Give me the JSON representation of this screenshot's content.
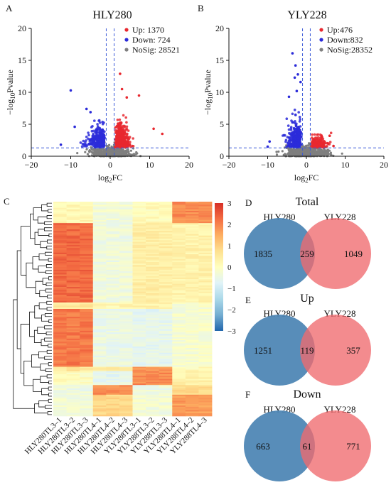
{
  "panel_labels": {
    "a": "A",
    "b": "B",
    "c": "C",
    "d": "D",
    "e": "E",
    "f": "F"
  },
  "chart_data": [
    {
      "type": "scatter",
      "panel": "A",
      "title": "HLY280",
      "xlabel": "log2FC",
      "ylabel": "-log10Pvalue",
      "xlim": [
        -20,
        20
      ],
      "ylim": [
        0,
        20
      ],
      "xticks": [
        "-20",
        "-10",
        "0",
        "10",
        "20"
      ],
      "yticks": [
        "0",
        "5",
        "10",
        "15",
        "20"
      ],
      "thresholds": {
        "x": [
          -1,
          1
        ],
        "y": 1.3
      },
      "legend_position": "top-right",
      "series": [
        {
          "name": "Up: 1370",
          "color": "#e8282f",
          "count": 1370
        },
        {
          "name": "Down: 724",
          "color": "#2b2bd9",
          "count": 724
        },
        {
          "name": "NoSig: 28521",
          "color": "#7f7f7f",
          "count": 28521
        }
      ]
    },
    {
      "type": "scatter",
      "panel": "B",
      "title": "YLY228",
      "xlabel": "log2FC",
      "ylabel": "-log10Pvalue",
      "xlim": [
        -20,
        20
      ],
      "ylim": [
        0,
        20
      ],
      "xticks": [
        "-20",
        "-10",
        "0",
        "10",
        "20"
      ],
      "yticks": [
        "0",
        "5",
        "10",
        "15",
        "20"
      ],
      "thresholds": {
        "x": [
          -1,
          1
        ],
        "y": 1.3
      },
      "legend_position": "top-right",
      "series": [
        {
          "name": "Up:476",
          "color": "#e8282f",
          "count": 476
        },
        {
          "name": "Down:832",
          "color": "#2b2bd9",
          "count": 832
        },
        {
          "name": "NoSig:28352",
          "color": "#7f7f7f",
          "count": 28352
        }
      ]
    },
    {
      "type": "heatmap",
      "panel": "C",
      "columns": [
        "HLY280TL3-1",
        "HLY280TL3-2",
        "HLY280TL3-3",
        "HLY280TL4-1",
        "HLY280TL4-2",
        "HLY280TL4-3",
        "YLY288TL3-1",
        "YLY288TL3-2",
        "YLY288TL3-3",
        "YLY288TL4-1",
        "YLY288TL4-2",
        "YLY288TL4-3"
      ],
      "colorbar": {
        "min": -3,
        "max": 3,
        "ticks": [
          "3",
          "2",
          "1",
          "0",
          "−1",
          "−2",
          "−3"
        ],
        "colors": [
          "#2166ac",
          "#74add1",
          "#abd9e9",
          "#e0f3f8",
          "#ffffbf",
          "#fee090",
          "#fdae61",
          "#f46d43",
          "#d73027"
        ]
      },
      "blocks": [
        {
          "rows": [
            0,
            0.1
          ],
          "values": [
            0.2,
            0.2,
            0.2,
            -0.3,
            -0.3,
            -0.3,
            0.1,
            0.1,
            0.1,
            1.9,
            1.9,
            1.9
          ]
        },
        {
          "rows": [
            0.1,
            0.47
          ],
          "values": [
            2.3,
            2.3,
            2.3,
            -0.4,
            -0.4,
            -0.4,
            0.4,
            0.4,
            0.4,
            0.3,
            0.3,
            0.3
          ]
        },
        {
          "rows": [
            0.47,
            0.5
          ],
          "values": [
            0.5,
            0.5,
            0.6,
            0.2,
            0.2,
            0.2,
            0.3,
            0.3,
            0.3,
            -0.2,
            -0.2,
            -0.2
          ]
        },
        {
          "rows": [
            0.5,
            0.77
          ],
          "values": [
            2.1,
            2.1,
            2.1,
            -0.5,
            -0.5,
            -0.5,
            -0.6,
            -0.6,
            -0.6,
            -0.2,
            -0.2,
            -0.2
          ]
        },
        {
          "rows": [
            0.77,
            0.79
          ],
          "values": [
            0.6,
            0.6,
            0.6,
            0.5,
            0.5,
            0.5,
            1.8,
            1.8,
            1.8,
            0.1,
            0.1,
            0.1
          ]
        },
        {
          "rows": [
            0.79,
            0.855
          ],
          "values": [
            0.0,
            0.0,
            0.0,
            -0.6,
            -0.6,
            -0.6,
            1.9,
            1.9,
            1.9,
            0.3,
            0.3,
            0.3
          ]
        },
        {
          "rows": [
            0.855,
            0.9
          ],
          "values": [
            -0.4,
            -0.4,
            -0.4,
            1.9,
            1.9,
            1.9,
            -0.4,
            -0.4,
            -0.4,
            0.8,
            0.8,
            0.8
          ]
        },
        {
          "rows": [
            0.9,
            1.0
          ],
          "values": [
            -0.3,
            -0.3,
            -0.3,
            0.9,
            0.9,
            0.9,
            -0.3,
            -0.3,
            -0.3,
            1.7,
            1.7,
            1.7
          ]
        }
      ]
    },
    {
      "type": "venn",
      "panel": "D",
      "title": "Total",
      "sets": [
        "HLY280",
        "YLY228"
      ],
      "values": {
        "left_only": 1835,
        "both": 259,
        "right_only": 1049
      }
    },
    {
      "type": "venn",
      "panel": "E",
      "title": "Up",
      "sets": [
        "HLY280",
        "YLY228"
      ],
      "values": {
        "left_only": 1251,
        "both": 119,
        "right_only": 357
      }
    },
    {
      "type": "venn",
      "panel": "F",
      "title": "Down",
      "sets": [
        "HLY280",
        "YLY228"
      ],
      "values": {
        "left_only": 663,
        "both": 61,
        "right_only": 771
      }
    }
  ],
  "colors": {
    "up": "#e8282f",
    "down": "#2b2bd9",
    "nosig": "#7f7f7f",
    "venn_left": "#4f87b5",
    "venn_right": "#f06a6e",
    "threshold": "#3d5bd8"
  }
}
